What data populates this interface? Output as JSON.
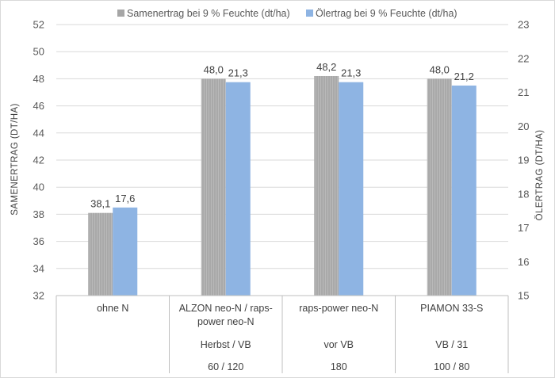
{
  "chart_data": {
    "type": "bar",
    "categories": [
      [
        "ohne N",
        "",
        ""
      ],
      [
        "ALZON neo-N / raps-power neo-N",
        "Herbst / VB",
        "60 / 120"
      ],
      [
        "raps-power neo-N",
        "vor VB",
        "180"
      ],
      [
        "PIAMON 33-S",
        "VB / 31",
        "100 / 80"
      ]
    ],
    "category_lines": [
      [
        "ohne N"
      ],
      [
        "ALZON neo-N / raps-",
        "power neo-N"
      ],
      [
        "raps-power neo-N"
      ],
      [
        "PIAMON 33-S"
      ]
    ],
    "series": [
      {
        "name": "Samenertrag bei 9 % Feuchte (dt/ha)",
        "axis": "left",
        "color": "#a6a6a6",
        "values": [
          38.1,
          48.0,
          48.2,
          48.0
        ],
        "labels": [
          "38,1",
          "48,0",
          "48,2",
          "48,0"
        ]
      },
      {
        "name": "Ölertrag bei 9 % Feuchte (dt/ha)",
        "axis": "right",
        "color": "#8eb4e3",
        "values": [
          17.6,
          21.3,
          21.3,
          21.2
        ],
        "labels": [
          "17,6",
          "21,3",
          "21,3",
          "21,2"
        ]
      }
    ],
    "ylabel": "SAMENERTRAG (DT/HA)",
    "ylabel_right": "ÖLERTRAG (DT/HA)",
    "ylim": [
      32,
      52
    ],
    "yticks": [
      32,
      34,
      36,
      38,
      40,
      42,
      44,
      46,
      48,
      50,
      52
    ],
    "ylim_right": [
      15,
      23
    ],
    "yticks_right": [
      15,
      16,
      17,
      18,
      19,
      20,
      21,
      22,
      23
    ],
    "grid": "horizontal",
    "legend_position": "top"
  }
}
